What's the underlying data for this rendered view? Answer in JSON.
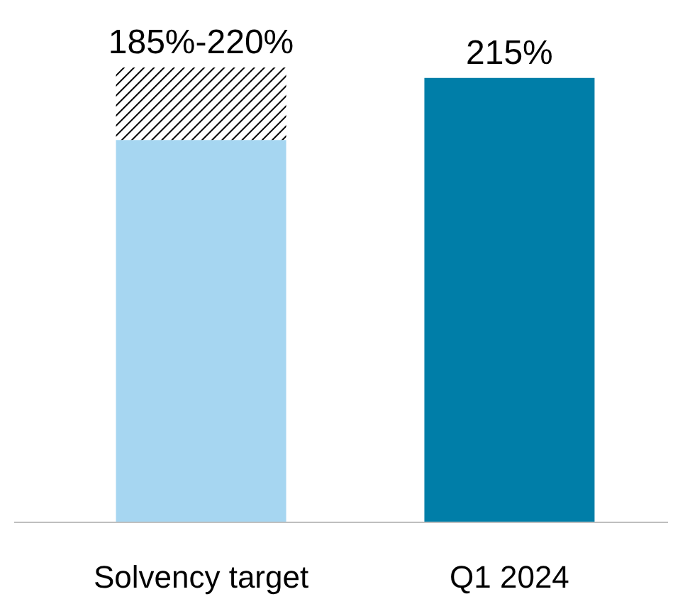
{
  "chart_data": {
    "type": "bar",
    "stacked": true,
    "categories": [
      "Solvency target",
      "Q1 2024"
    ],
    "series": [
      {
        "color": "#a6d6f1",
        "values": [
          185,
          null
        ]
      },
      {
        "color": "#000000",
        "values": [
          35,
          null
        ]
      },
      {
        "color": "#007ea8",
        "values": [
          null,
          215
        ],
        "value_labels": [
          null,
          "215%"
        ]
      }
    ],
    "annotations": [
      {
        "text": "185%-220%",
        "x": "Solvency target",
        "y": 220
      }
    ]
  }
}
